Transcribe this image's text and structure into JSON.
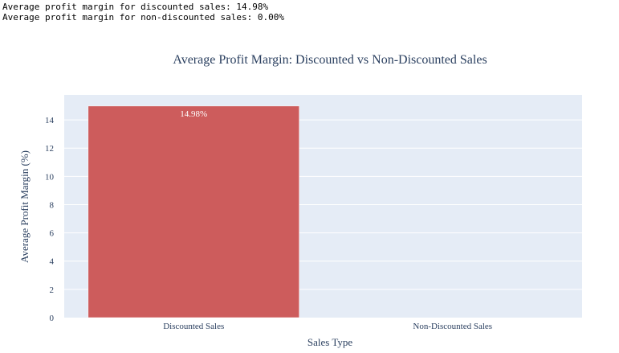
{
  "console": {
    "line1": "Average profit margin for discounted sales: 14.98%",
    "line2": "Average profit margin for non-discounted sales: 0.00%"
  },
  "chart_data": {
    "type": "bar",
    "title": "Average Profit Margin: Discounted vs Non-Discounted Sales",
    "xlabel": "Sales Type",
    "ylabel": "Average Profit Margin (%)",
    "categories": [
      "Discounted Sales",
      "Non-Discounted Sales"
    ],
    "values": [
      14.98,
      0.0
    ],
    "data_labels": [
      "14.98%",
      ""
    ],
    "ylim": [
      0,
      15.77
    ],
    "yticks": [
      0,
      2,
      4,
      6,
      8,
      10,
      12,
      14
    ],
    "bar_color": "#cd5c5c",
    "plot_bg": "#e5ecf6",
    "grid": true
  }
}
